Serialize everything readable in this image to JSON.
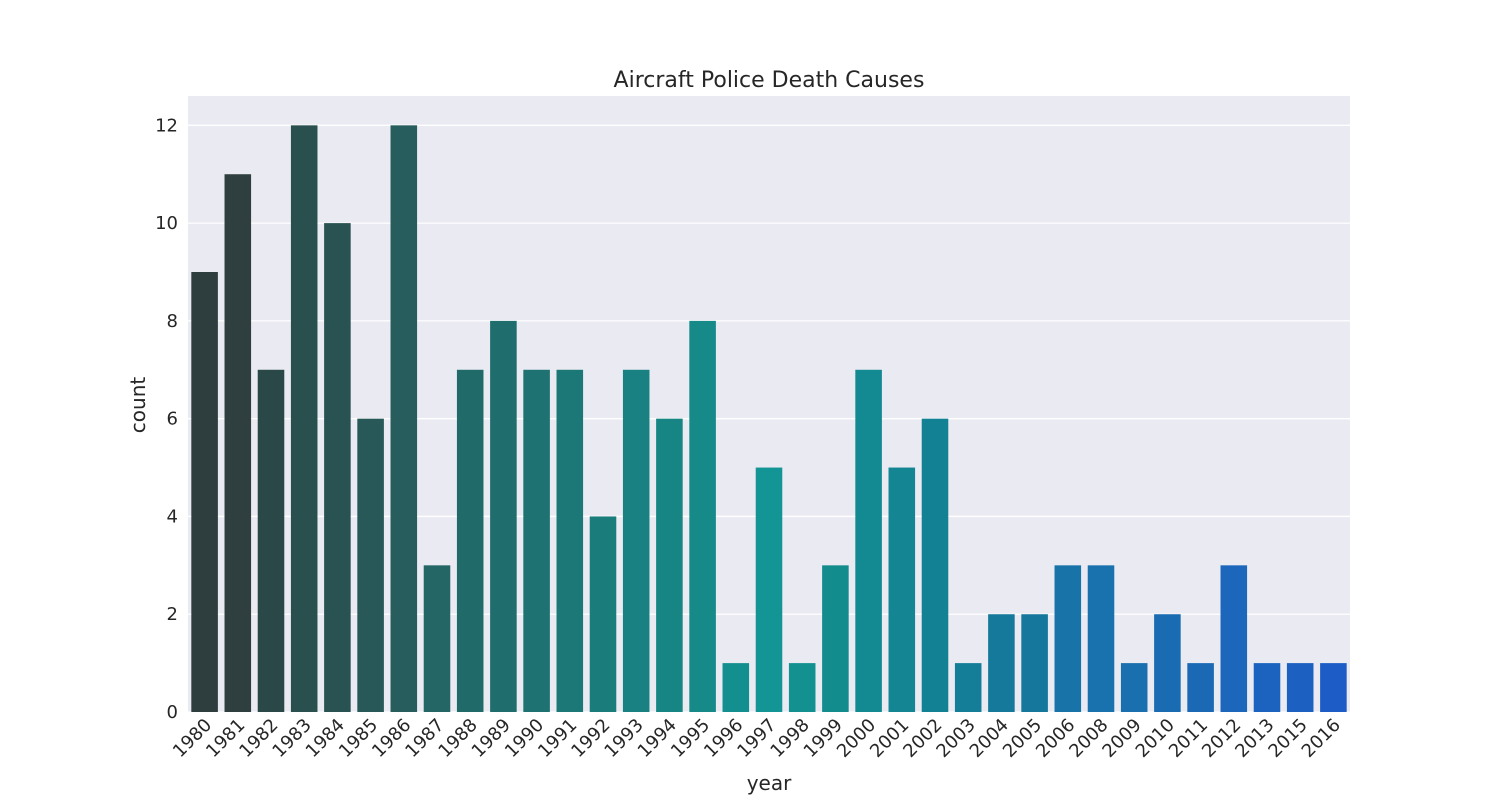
{
  "chart_data": {
    "type": "bar",
    "title": "Aircraft Police Death Causes",
    "xlabel": "year",
    "ylabel": "count",
    "ylim": [
      0,
      12.6
    ],
    "yticks": [
      0,
      2,
      4,
      6,
      8,
      10,
      12
    ],
    "grid": true,
    "legend": "none",
    "categories": [
      "1980",
      "1981",
      "1982",
      "1983",
      "1984",
      "1985",
      "1986",
      "1987",
      "1988",
      "1989",
      "1990",
      "1991",
      "1992",
      "1993",
      "1994",
      "1995",
      "1996",
      "1997",
      "1998",
      "1999",
      "2000",
      "2001",
      "2002",
      "2003",
      "2004",
      "2005",
      "2006",
      "2008",
      "2009",
      "2010",
      "2011",
      "2012",
      "2013",
      "2015",
      "2016"
    ],
    "values": [
      9,
      11,
      7,
      12,
      10,
      6,
      12,
      3,
      7,
      8,
      7,
      7,
      4,
      7,
      6,
      8,
      1,
      5,
      1,
      3,
      7,
      5,
      6,
      1,
      2,
      2,
      3,
      3,
      1,
      2,
      1,
      3,
      1,
      1,
      1
    ],
    "colors": [
      "#2e3d3d",
      "#2f3f3f",
      "#2a4848",
      "#2a4f4f",
      "#295252",
      "#285858",
      "#275d5d",
      "#246565",
      "#216a6a",
      "#1f6d6d",
      "#1e7272",
      "#1c7777",
      "#1b7c7c",
      "#198181",
      "#188585",
      "#168989",
      "#148f8f",
      "#139595",
      "#139191",
      "#138c8e",
      "#138992",
      "#138593",
      "#138194",
      "#147e98",
      "#15799b",
      "#16779d",
      "#1873a9",
      "#1972ad",
      "#1a6fae",
      "#1a6cb2",
      "#1b69b5",
      "#1c67bb",
      "#1c63bf",
      "#1c60c2",
      "#1d5cc6"
    ],
    "background": "#eaeaf2",
    "gridcolor": "#ffffff"
  }
}
